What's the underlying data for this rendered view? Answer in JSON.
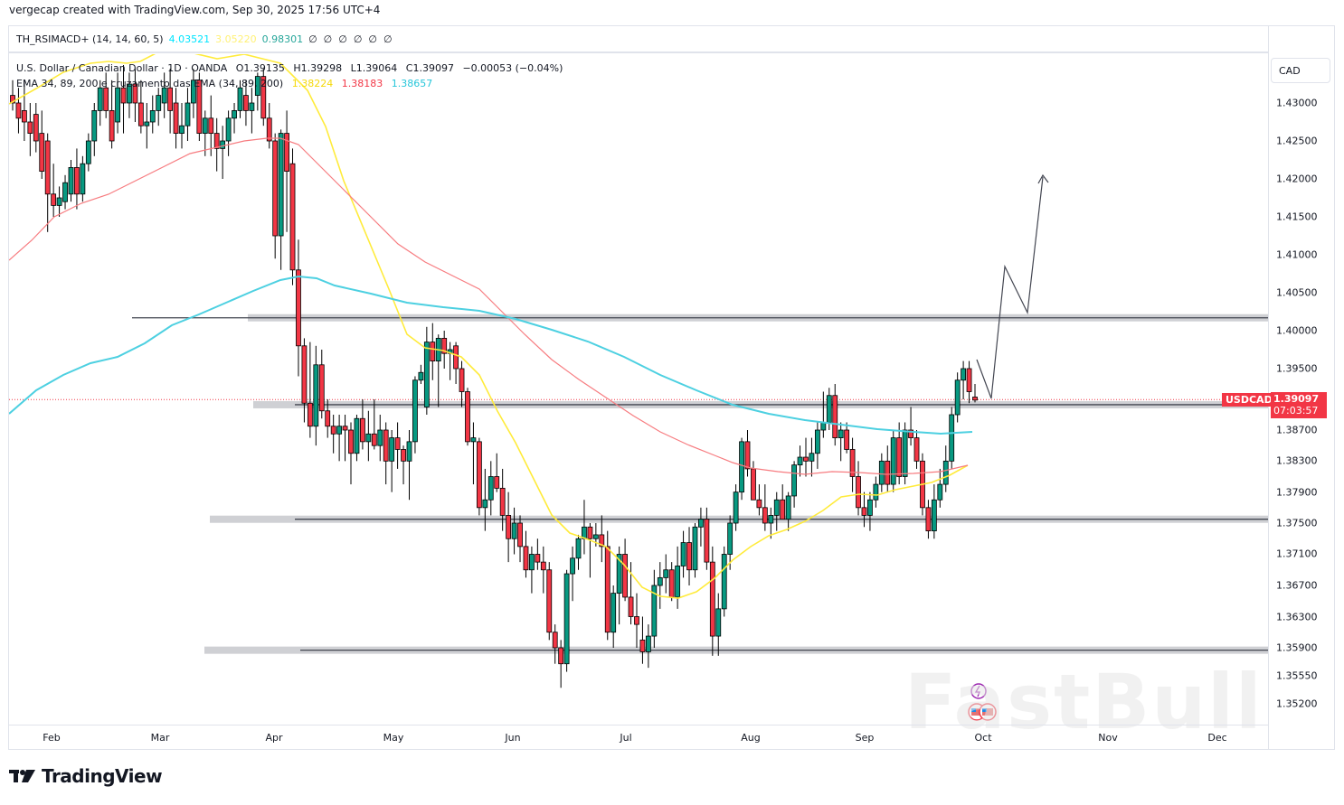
{
  "credit": "vergecap created with TradingView.com, Sep 30, 2025 17:56 UTC+4",
  "indicator": {
    "name": "TH_RSIMACD+ (14, 14, 60, 5)",
    "v1": "4.03521",
    "v2": "3.05220",
    "v3": "0.98301",
    "nulls": "∅  ∅  ∅  ∅  ∅  ∅",
    "colors": {
      "v1": "#00e5ff",
      "v2": "#fff176",
      "v3": "#26a69a"
    }
  },
  "legend": {
    "symbol": "U.S. Dollar / Canadian Dollar · 1D · OANDA",
    "open": "O1.39135",
    "high": "H1.39298",
    "low": "L1.39064",
    "close": "C1.39097",
    "change": "−0.00053 (−0.04%)",
    "ema_label": "EMA 34, 89, 200 e cruzamento das EMA (34, 89, 200)",
    "ema34": "1.38224",
    "ema89": "1.38183",
    "ema200": "1.38657"
  },
  "price_axis": {
    "currency": "CAD",
    "ticks": [
      "1.43000",
      "1.42500",
      "1.42000",
      "1.41500",
      "1.41000",
      "1.40500",
      "1.40000",
      "1.39500",
      "1.38700",
      "1.38300",
      "1.37900",
      "1.37500",
      "1.37100",
      "1.36700",
      "1.36300",
      "1.35900",
      "1.35550",
      "1.35200"
    ]
  },
  "last": {
    "symbol": "USDCAD",
    "price": "1.39097",
    "countdown": "07:03:57"
  },
  "time_axis": {
    "months": [
      "Feb",
      "Mar",
      "Apr",
      "May",
      "Jun",
      "Jul",
      "Aug",
      "Sep",
      "Oct",
      "Nov",
      "Dec"
    ]
  },
  "brand": "TradingView",
  "watermark": "FastBull",
  "colors": {
    "up": "#089981",
    "down": "#f23645",
    "ema34": "#ffeb3b",
    "ema89": "#f77c80",
    "ema200": "#4dd0e1",
    "zone": "#cfd0d4"
  },
  "chart_data": {
    "type": "candlestick",
    "title": "U.S. Dollar / Canadian Dollar · 1D · OANDA",
    "xlabel": "",
    "ylabel": "CAD",
    "ylim": [
      1.35,
      1.434
    ],
    "x_ticks": [
      "Feb",
      "Mar",
      "Apr",
      "May",
      "Jun",
      "Jul",
      "Aug",
      "Sep",
      "Oct",
      "Nov",
      "Dec"
    ],
    "support_resistance": [
      1.4017,
      1.3903,
      1.3755,
      1.3587
    ],
    "ema_last": {
      "EMA34": 1.38224,
      "EMA89": 1.38183,
      "EMA200": 1.38657
    },
    "projection_path": [
      [
        1.391,
        "Sep 30"
      ],
      [
        1.4085,
        "Oct 3"
      ],
      [
        1.4025,
        "Oct 5"
      ],
      [
        1.4205,
        "Oct 8"
      ]
    ],
    "candles": [
      [
        1.431,
        1.433,
        1.429,
        1.43
      ],
      [
        1.43,
        1.432,
        1.426,
        1.428
      ],
      [
        1.429,
        1.433,
        1.425,
        1.4275
      ],
      [
        1.4275,
        1.43,
        1.423,
        1.426
      ],
      [
        1.4285,
        1.43,
        1.4235,
        1.425
      ],
      [
        1.426,
        1.429,
        1.42,
        1.421
      ],
      [
        1.425,
        1.426,
        1.413,
        1.418
      ],
      [
        1.418,
        1.422,
        1.415,
        1.4165
      ],
      [
        1.4165,
        1.419,
        1.415,
        1.4175
      ],
      [
        1.417,
        1.4205,
        1.416,
        1.4195
      ],
      [
        1.418,
        1.4225,
        1.417,
        1.4215
      ],
      [
        1.4215,
        1.424,
        1.416,
        1.418
      ],
      [
        1.418,
        1.423,
        1.417,
        1.422
      ],
      [
        1.422,
        1.426,
        1.421,
        1.425
      ],
      [
        1.425,
        1.43,
        1.423,
        1.429
      ],
      [
        1.429,
        1.433,
        1.427,
        1.432
      ],
      [
        1.432,
        1.434,
        1.428,
        1.429
      ],
      [
        1.429,
        1.433,
        1.424,
        1.425
      ],
      [
        1.4275,
        1.434,
        1.426,
        1.432
      ],
      [
        1.432,
        1.435,
        1.426,
        1.43
      ],
      [
        1.43,
        1.434,
        1.428,
        1.4325
      ],
      [
        1.4325,
        1.4345,
        1.4275,
        1.43
      ],
      [
        1.43,
        1.433,
        1.426,
        1.427
      ],
      [
        1.427,
        1.43,
        1.424,
        1.4275
      ],
      [
        1.4275,
        1.431,
        1.426,
        1.429
      ],
      [
        1.429,
        1.432,
        1.427,
        1.431
      ],
      [
        1.43,
        1.434,
        1.428,
        1.432
      ],
      [
        1.432,
        1.4345,
        1.426,
        1.429
      ],
      [
        1.43,
        1.432,
        1.424,
        1.426
      ],
      [
        1.426,
        1.43,
        1.424,
        1.427
      ],
      [
        1.427,
        1.432,
        1.425,
        1.43
      ],
      [
        1.43,
        1.4345,
        1.428,
        1.433
      ],
      [
        1.433,
        1.434,
        1.425,
        1.426
      ],
      [
        1.426,
        1.429,
        1.423,
        1.428
      ],
      [
        1.428,
        1.431,
        1.423,
        1.426
      ],
      [
        1.426,
        1.428,
        1.421,
        1.424
      ],
      [
        1.424,
        1.427,
        1.42,
        1.425
      ],
      [
        1.425,
        1.429,
        1.423,
        1.428
      ],
      [
        1.428,
        1.43,
        1.426,
        1.429
      ],
      [
        1.429,
        1.433,
        1.428,
        1.432
      ],
      [
        1.431,
        1.433,
        1.427,
        1.429
      ],
      [
        1.429,
        1.432,
        1.426,
        1.43
      ],
      [
        1.431,
        1.434,
        1.429,
        1.4335
      ],
      [
        1.4335,
        1.4345,
        1.427,
        1.428
      ],
      [
        1.428,
        1.43,
        1.424,
        1.425
      ],
      [
        1.425,
        1.426,
        1.4095,
        1.4125
      ],
      [
        1.4125,
        1.4265,
        1.408,
        1.426
      ],
      [
        1.426,
        1.429,
        1.413,
        1.421
      ],
      [
        1.422,
        1.424,
        1.406,
        1.408
      ],
      [
        1.408,
        1.412,
        1.394,
        1.398
      ],
      [
        1.398,
        1.399,
        1.388,
        1.3905
      ],
      [
        1.3905,
        1.3985,
        1.386,
        1.3875
      ],
      [
        1.3875,
        1.398,
        1.385,
        1.3955
      ],
      [
        1.3955,
        1.3975,
        1.3885,
        1.3895
      ],
      [
        1.3895,
        1.391,
        1.386,
        1.3875
      ],
      [
        1.3875,
        1.389,
        1.384,
        1.3865
      ],
      [
        1.3865,
        1.389,
        1.383,
        1.3875
      ],
      [
        1.3875,
        1.389,
        1.383,
        1.387
      ],
      [
        1.387,
        1.388,
        1.38,
        1.384
      ],
      [
        1.384,
        1.389,
        1.383,
        1.3885
      ],
      [
        1.3885,
        1.391,
        1.3845,
        1.3855
      ],
      [
        1.3855,
        1.3895,
        1.383,
        1.3865
      ],
      [
        1.3865,
        1.391,
        1.3845,
        1.385
      ],
      [
        1.385,
        1.389,
        1.383,
        1.387
      ],
      [
        1.387,
        1.388,
        1.38,
        1.383
      ],
      [
        1.383,
        1.387,
        1.379,
        1.386
      ],
      [
        1.386,
        1.388,
        1.382,
        1.3845
      ],
      [
        1.3845,
        1.385,
        1.38,
        1.383
      ],
      [
        1.383,
        1.387,
        1.378,
        1.3855
      ],
      [
        1.3855,
        1.394,
        1.384,
        1.3935
      ],
      [
        1.3935,
        1.3955,
        1.393,
        1.3945
      ],
      [
        1.39,
        1.4005,
        1.389,
        1.3985
      ],
      [
        1.3985,
        1.401,
        1.3935,
        1.396
      ],
      [
        1.396,
        1.3995,
        1.39,
        1.399
      ],
      [
        1.399,
        1.4,
        1.395,
        1.397
      ],
      [
        1.397,
        1.3985,
        1.3935,
        1.3975
      ],
      [
        1.398,
        1.3985,
        1.393,
        1.395
      ],
      [
        1.395,
        1.396,
        1.39,
        1.392
      ],
      [
        1.392,
        1.3925,
        1.385,
        1.3855
      ],
      [
        1.3855,
        1.388,
        1.38,
        1.386
      ],
      [
        1.3855,
        1.386,
        1.376,
        1.377
      ],
      [
        1.377,
        1.382,
        1.374,
        1.378
      ],
      [
        1.378,
        1.383,
        1.376,
        1.381
      ],
      [
        1.381,
        1.384,
        1.379,
        1.3795
      ],
      [
        1.3795,
        1.382,
        1.374,
        1.376
      ],
      [
        1.376,
        1.379,
        1.37,
        1.373
      ],
      [
        1.373,
        1.377,
        1.371,
        1.375
      ],
      [
        1.375,
        1.376,
        1.37,
        1.372
      ],
      [
        1.372,
        1.374,
        1.368,
        1.369
      ],
      [
        1.369,
        1.372,
        1.366,
        1.371
      ],
      [
        1.371,
        1.373,
        1.369,
        1.37
      ],
      [
        1.37,
        1.372,
        1.366,
        1.369
      ],
      [
        1.369,
        1.37,
        1.36,
        1.361
      ],
      [
        1.361,
        1.362,
        1.357,
        1.359
      ],
      [
        1.359,
        1.36,
        1.354,
        1.357
      ],
      [
        1.357,
        1.369,
        1.356,
        1.3685
      ],
      [
        1.3685,
        1.372,
        1.365,
        1.3705
      ],
      [
        1.3705,
        1.3735,
        1.369,
        1.373
      ],
      [
        1.373,
        1.378,
        1.371,
        1.3745
      ],
      [
        1.3745,
        1.375,
        1.368,
        1.373
      ],
      [
        1.373,
        1.375,
        1.372,
        1.3735
      ],
      [
        1.3735,
        1.376,
        1.37,
        1.372
      ],
      [
        1.372,
        1.374,
        1.36,
        1.361
      ],
      [
        1.361,
        1.367,
        1.359,
        1.366
      ],
      [
        1.366,
        1.372,
        1.362,
        1.371
      ],
      [
        1.371,
        1.373,
        1.365,
        1.3655
      ],
      [
        1.3655,
        1.37,
        1.362,
        1.363
      ],
      [
        1.363,
        1.366,
        1.359,
        1.362
      ],
      [
        1.36,
        1.363,
        1.357,
        1.3585
      ],
      [
        1.3585,
        1.362,
        1.3565,
        1.3605
      ],
      [
        1.3605,
        1.369,
        1.359,
        1.367
      ],
      [
        1.367,
        1.37,
        1.364,
        1.368
      ],
      [
        1.368,
        1.371,
        1.366,
        1.369
      ],
      [
        1.369,
        1.37,
        1.365,
        1.3655
      ],
      [
        1.3655,
        1.372,
        1.364,
        1.3695
      ],
      [
        1.3695,
        1.374,
        1.368,
        1.3725
      ],
      [
        1.3725,
        1.3745,
        1.367,
        1.369
      ],
      [
        1.369,
        1.375,
        1.368,
        1.3745
      ],
      [
        1.3745,
        1.377,
        1.372,
        1.3755
      ],
      [
        1.3755,
        1.377,
        1.369,
        1.37
      ],
      [
        1.37,
        1.372,
        1.358,
        1.3605
      ],
      [
        1.3605,
        1.366,
        1.358,
        1.364
      ],
      [
        1.364,
        1.372,
        1.363,
        1.371
      ],
      [
        1.371,
        1.376,
        1.369,
        1.375
      ],
      [
        1.375,
        1.38,
        1.374,
        1.379
      ],
      [
        1.379,
        1.386,
        1.378,
        1.3855
      ],
      [
        1.3855,
        1.387,
        1.381,
        1.382
      ],
      [
        1.382,
        1.383,
        1.379,
        1.378
      ],
      [
        1.378,
        1.38,
        1.376,
        1.377
      ],
      [
        1.377,
        1.38,
        1.374,
        1.375
      ],
      [
        1.375,
        1.377,
        1.373,
        1.376
      ],
      [
        1.376,
        1.379,
        1.374,
        1.378
      ],
      [
        1.378,
        1.38,
        1.376,
        1.3755
      ],
      [
        1.3755,
        1.379,
        1.374,
        1.3785
      ],
      [
        1.3785,
        1.383,
        1.377,
        1.3825
      ],
      [
        1.3825,
        1.385,
        1.381,
        1.3835
      ],
      [
        1.3835,
        1.386,
        1.381,
        1.383
      ],
      [
        1.383,
        1.386,
        1.381,
        1.384
      ],
      [
        1.384,
        1.388,
        1.382,
        1.387
      ],
      [
        1.387,
        1.392,
        1.386,
        1.388
      ],
      [
        1.388,
        1.3925,
        1.387,
        1.3915
      ],
      [
        1.3915,
        1.393,
        1.385,
        1.386
      ],
      [
        1.386,
        1.388,
        1.383,
        1.387
      ],
      [
        1.387,
        1.388,
        1.384,
        1.3845
      ],
      [
        1.3845,
        1.386,
        1.379,
        1.381
      ],
      [
        1.381,
        1.383,
        1.376,
        1.377
      ],
      [
        1.377,
        1.379,
        1.3745,
        1.376
      ],
      [
        1.376,
        1.379,
        1.374,
        1.378
      ],
      [
        1.378,
        1.381,
        1.377,
        1.38
      ],
      [
        1.38,
        1.384,
        1.379,
        1.383
      ],
      [
        1.383,
        1.385,
        1.379,
        1.38
      ],
      [
        1.38,
        1.387,
        1.379,
        1.386
      ],
      [
        1.386,
        1.388,
        1.38,
        1.381
      ],
      [
        1.381,
        1.388,
        1.38,
        1.387
      ],
      [
        1.387,
        1.39,
        1.385,
        1.386
      ],
      [
        1.386,
        1.387,
        1.382,
        1.383
      ],
      [
        1.383,
        1.384,
        1.376,
        1.377
      ],
      [
        1.377,
        1.378,
        1.373,
        1.374
      ],
      [
        1.374,
        1.38,
        1.373,
        1.378
      ],
      [
        1.378,
        1.382,
        1.377,
        1.38
      ],
      [
        1.38,
        1.385,
        1.379,
        1.383
      ],
      [
        1.383,
        1.39,
        1.382,
        1.389
      ],
      [
        1.389,
        1.3945,
        1.388,
        1.3935
      ],
      [
        1.3935,
        1.396,
        1.391,
        1.395
      ],
      [
        1.395,
        1.396,
        1.3905,
        1.392
      ],
      [
        1.3913,
        1.393,
        1.3906,
        1.3909
      ]
    ]
  }
}
